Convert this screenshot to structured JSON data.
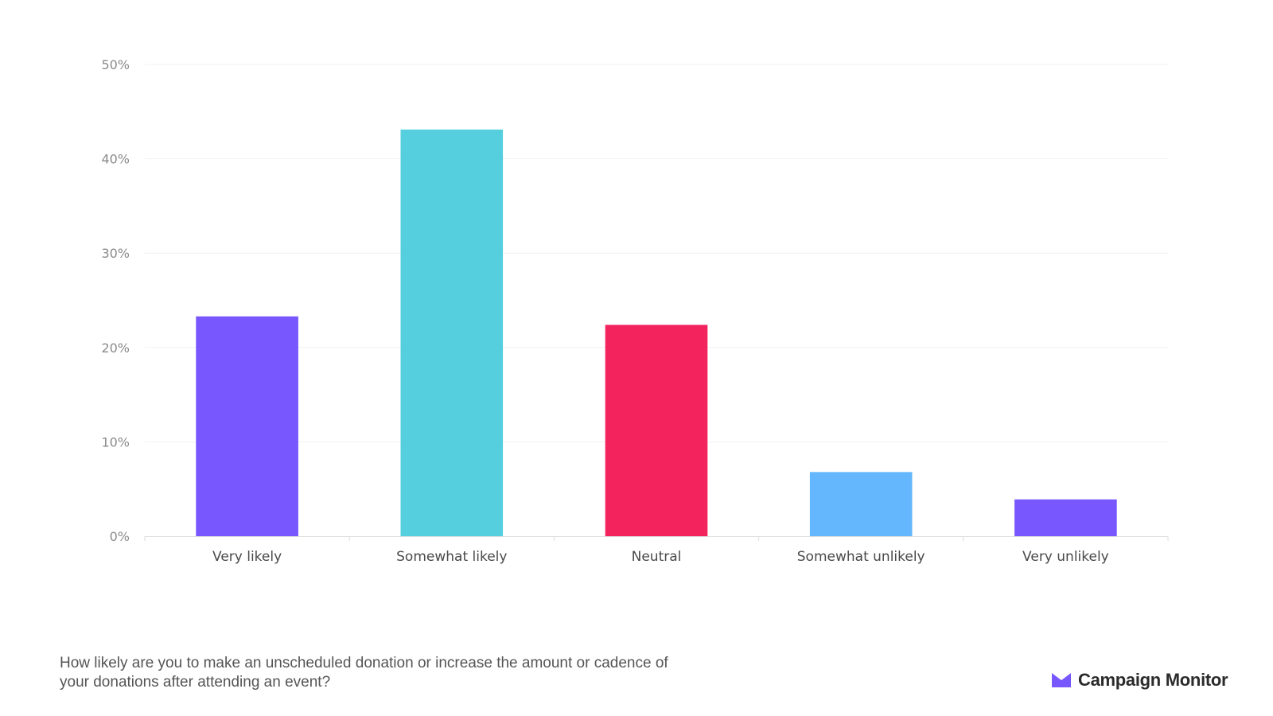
{
  "chart_data": {
    "type": "bar",
    "categories": [
      "Very likely",
      "Somewhat likely",
      "Neutral",
      "Somewhat unlikely",
      "Very unlikely"
    ],
    "values": [
      23.3,
      43.1,
      22.4,
      6.8,
      3.9
    ],
    "ylim": [
      0,
      50
    ],
    "yticks": [
      0,
      10,
      20,
      30,
      40,
      50
    ],
    "ytick_labels": [
      "0%",
      "10%",
      "20%",
      "30%",
      "40%",
      "50%"
    ],
    "bar_colors": [
      "#7857fe",
      "#55cfdd",
      "#f2235d",
      "#64b7fd",
      "#7857fe"
    ],
    "grid": true,
    "legend": "none"
  },
  "footer": {
    "caption": "How likely are you to make an unscheduled donation or increase the amount or cadence of your donations after attending an event?",
    "brand_name": "Campaign Monitor",
    "brand_color": "#7857fe"
  }
}
